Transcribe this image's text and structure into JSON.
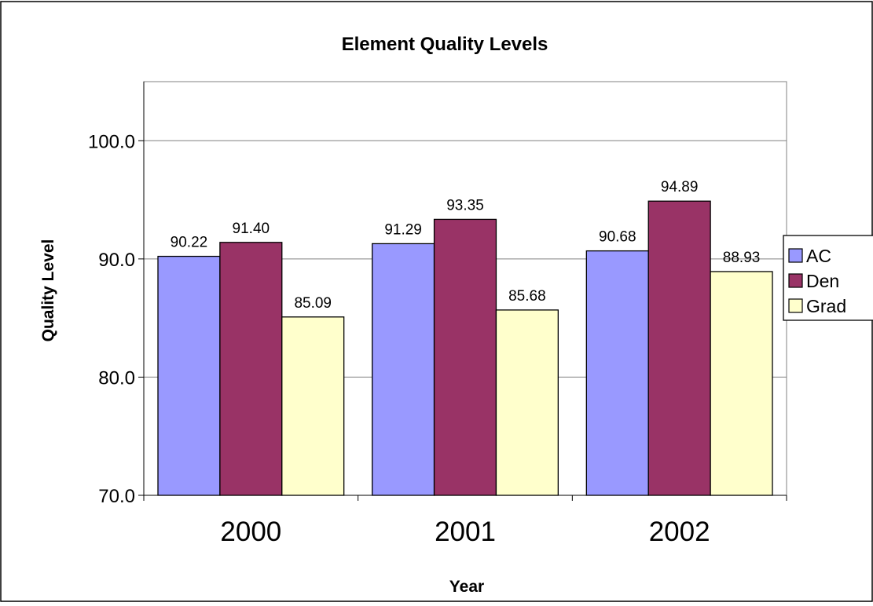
{
  "chart_data": {
    "type": "bar",
    "title": "Element Quality Levels",
    "xlabel": "Year",
    "ylabel": "Quality Level",
    "categories": [
      "2000",
      "2001",
      "2002"
    ],
    "series": [
      {
        "name": "AC",
        "values": [
          90.22,
          91.29,
          90.68
        ],
        "color": "#9999FF",
        "labels": [
          "90.22",
          "91.29",
          "90.68"
        ]
      },
      {
        "name": "Den",
        "values": [
          91.4,
          93.35,
          94.89
        ],
        "color": "#993366",
        "labels": [
          "91.40",
          "93.35",
          "94.89"
        ]
      },
      {
        "name": "Grad",
        "values": [
          85.09,
          85.68,
          88.93
        ],
        "color": "#FFFFCC",
        "labels": [
          "85.09",
          "85.68",
          "88.93"
        ]
      }
    ],
    "ylim": [
      70,
      105
    ],
    "yticks": [
      70,
      80,
      90,
      100
    ],
    "ytick_labels": [
      "70.0",
      "80.0",
      "90.0",
      "100.0"
    ],
    "grid": true,
    "legend": "right"
  }
}
